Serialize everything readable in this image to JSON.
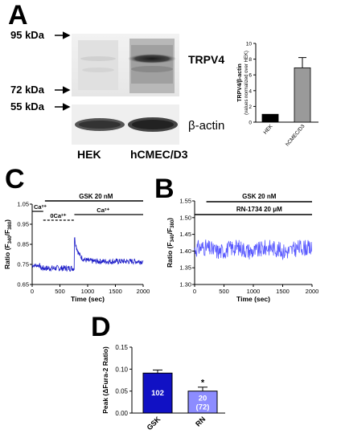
{
  "panels": {
    "A": {
      "letter": "A",
      "markers": [
        "95 kDa",
        "72 kDa",
        "55 kDa"
      ],
      "blot_labels": {
        "trpv4": "TRPV4",
        "actin": "β-actin"
      },
      "lanes": [
        "HEK",
        "hCMEC/D3"
      ]
    },
    "B": {
      "letter": "B"
    },
    "C": {
      "letter": "C"
    },
    "D": {
      "letter": "D"
    }
  },
  "chart_data": [
    {
      "id": "A_bar",
      "type": "bar",
      "categories": [
        "HEK",
        "hCMEC/D3"
      ],
      "values": [
        1.0,
        6.9
      ],
      "errors": [
        0,
        1.3
      ],
      "colors": [
        "#000000",
        "#9a9a9a"
      ],
      "ylabel": "TRPV4/β-actin",
      "ylabel2": "(values normalized over HEK)",
      "ylim": [
        0,
        10
      ],
      "yticks": [
        "0",
        "2",
        "4",
        "6",
        "8",
        "10"
      ]
    },
    {
      "id": "C_trace",
      "type": "line",
      "xlabel": "Time (sec)",
      "ylabel": "Ratio (F340/F380)",
      "xlim": [
        0,
        2000
      ],
      "ylim": [
        0.65,
        1.05
      ],
      "xticks": [
        "0",
        "500",
        "1000",
        "1500",
        "2000"
      ],
      "yticks": [
        "0.65",
        "0.75",
        "0.85",
        "0.95",
        "1.05"
      ],
      "annotations": {
        "gsk": "GSK 20 nM",
        "ca_start": "Ca2+",
        "ca_free": "0Ca2+",
        "ca_return": "Ca2+"
      },
      "baseline": 0.745,
      "dip_low": 0.725,
      "peak_time": 760,
      "peak_value": 0.89,
      "plateau": 0.765,
      "color": "#1c1cc8"
    },
    {
      "id": "B_trace",
      "type": "line",
      "xlabel": "Time (sec)",
      "ylabel": "Ratio (F340/F380)",
      "xlim": [
        0,
        2000
      ],
      "ylim": [
        1.3,
        1.55
      ],
      "xticks": [
        "0",
        "500",
        "1000",
        "1500",
        "2000"
      ],
      "yticks": [
        "1.30",
        "1.35",
        "1.40",
        "1.45",
        "1.50",
        "1.55"
      ],
      "annotations": {
        "gsk": "GSK 20 nM",
        "rn": "RN-1734 20 μM"
      },
      "baseline": 1.405,
      "color": "#5a5aff"
    },
    {
      "id": "D_bar",
      "type": "bar",
      "categories": [
        "GSK",
        "RN"
      ],
      "values": [
        0.091,
        0.05
      ],
      "errors": [
        0.007,
        0.009
      ],
      "colors": [
        "#1111c4",
        "#8c8cff"
      ],
      "bar_labels": [
        "102",
        "20\n(72)"
      ],
      "significance": [
        "",
        "*"
      ],
      "ylabel": "Peak (ΔFura-2 Ratio)",
      "ylim": [
        0,
        0.15
      ],
      "yticks": [
        "0.00",
        "0.05",
        "0.10",
        "0.15"
      ]
    }
  ]
}
